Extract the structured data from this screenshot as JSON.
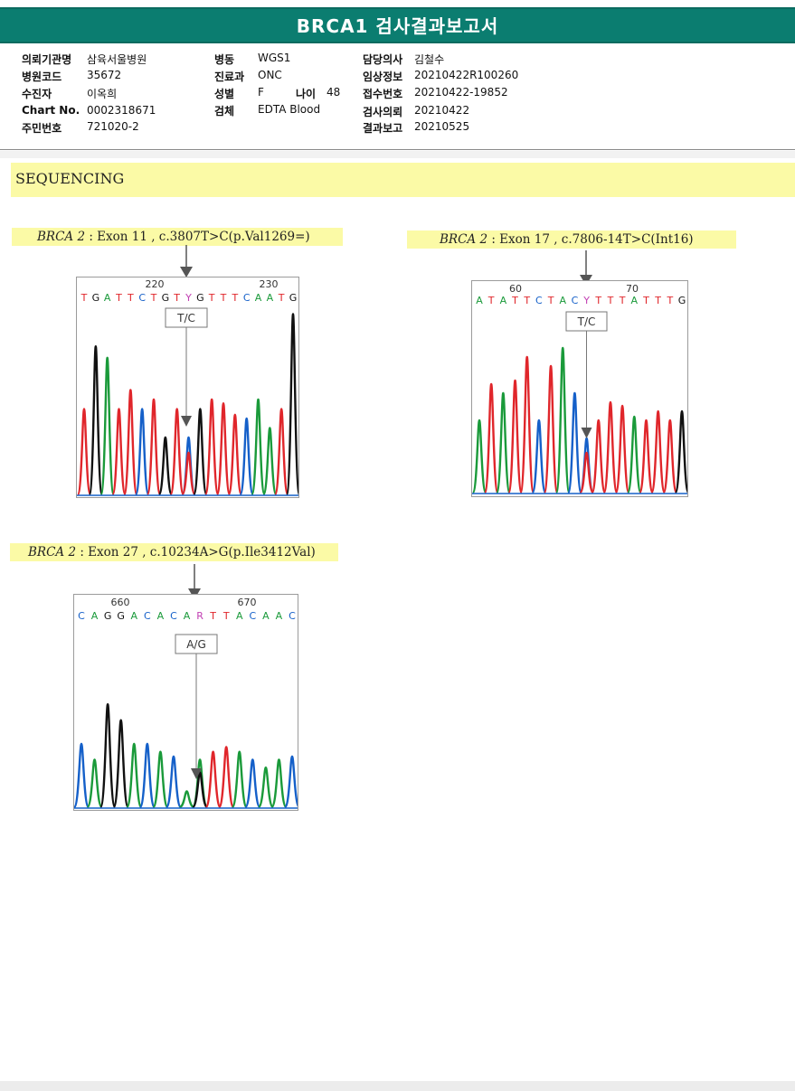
{
  "report": {
    "title": "BRCA1 검사결과보고서"
  },
  "header": {
    "col1": [
      {
        "label": "의뢰기관명",
        "value": "삼육서울병원"
      },
      {
        "label": "병원코드",
        "value": "35672"
      },
      {
        "label": "수진자",
        "value": "이옥희"
      },
      {
        "label": "Chart No.",
        "value": "0002318671"
      },
      {
        "label": "주민번호",
        "value": "721020-2"
      }
    ],
    "col2": [
      {
        "label": "병동",
        "value": "WGS1"
      },
      {
        "label": "진료과",
        "value": "ONC"
      },
      {
        "label": "성별",
        "value": "F"
      },
      {
        "label": "검체",
        "value": "EDTA Blood"
      }
    ],
    "age": {
      "label": "나이",
      "value": "48"
    },
    "col3": [
      {
        "label": "담당의사",
        "value": "김철수"
      },
      {
        "label": "임상정보",
        "value": "20210422R100260"
      },
      {
        "label": "접수번호",
        "value": "20210422-19852"
      },
      {
        "label": "검사의뢰",
        "value": "20210422"
      },
      {
        "label": "결과보고",
        "value": "20210525"
      }
    ]
  },
  "section": {
    "title": "SEQUENCING"
  },
  "variants": [
    {
      "gene": "BRCA 2",
      "detail": " : Exon 11 , c.3807T>C(p.Val1269=)",
      "seq_numbers": [
        "220",
        "230"
      ],
      "bases": "TGATTCTGTYGTTTCAATG",
      "call": "T/C"
    },
    {
      "gene": "BRCA 2",
      "detail": " : Exon 17 , c.7806-14T>C(Int16)",
      "seq_numbers": [
        "60",
        "70"
      ],
      "bases": "ATATTCTACYTTTATTTG",
      "call": "T/C"
    },
    {
      "gene": "BRCA 2",
      "detail": " : Exon 27 , c.10234A>G(p.Ile3412Val)",
      "seq_numbers": [
        "660",
        "670"
      ],
      "bases": "CAGGACACARTTACAAC",
      "call": "A/G"
    }
  ],
  "colors": {
    "header_teal": "#0b7d70",
    "highlight_yellow": "#fbfaa6",
    "base_A": "#1a9a3a",
    "base_C": "#1560c9",
    "base_G": "#111111",
    "base_T": "#e0262b",
    "ambiguous": "#c23fb3"
  }
}
